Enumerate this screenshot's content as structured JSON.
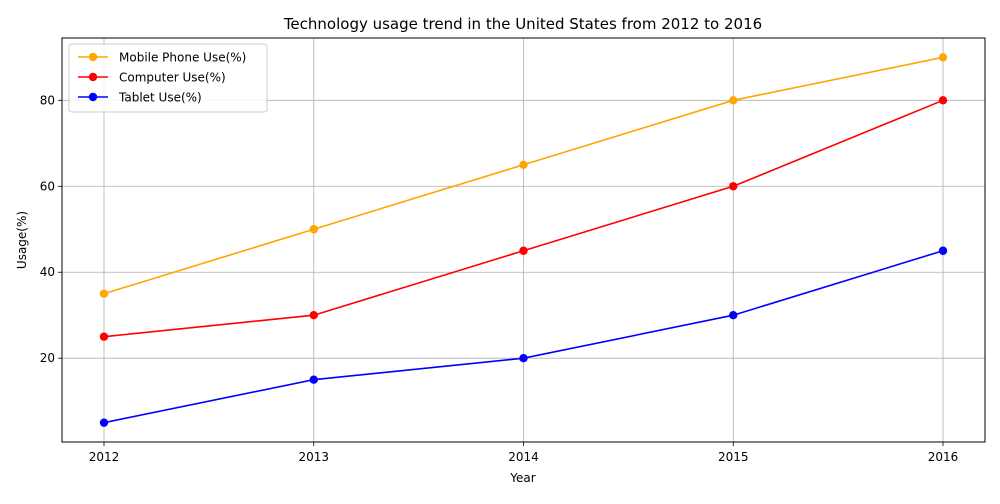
{
  "chart_data": {
    "type": "line",
    "title": "Technology usage trend in the United States from 2012 to 2016",
    "xlabel": "Year",
    "ylabel": "Usage(%)",
    "x": [
      "2012",
      "2013",
      "2014",
      "2015",
      "2016"
    ],
    "ylim": [
      0.5,
      94.5
    ],
    "yticks": [
      20,
      40,
      60,
      80
    ],
    "grid": true,
    "legend_position": "top-left",
    "series": [
      {
        "name": "Mobile Phone Use(%)",
        "color": "#ffa500",
        "values": [
          35,
          50,
          65,
          80,
          90
        ]
      },
      {
        "name": "Computer Use(%)",
        "color": "#ff0000",
        "values": [
          25,
          30,
          45,
          60,
          80
        ]
      },
      {
        "name": "Tablet Use(%)",
        "color": "#0000ff",
        "values": [
          5,
          15,
          20,
          30,
          45
        ]
      }
    ]
  }
}
